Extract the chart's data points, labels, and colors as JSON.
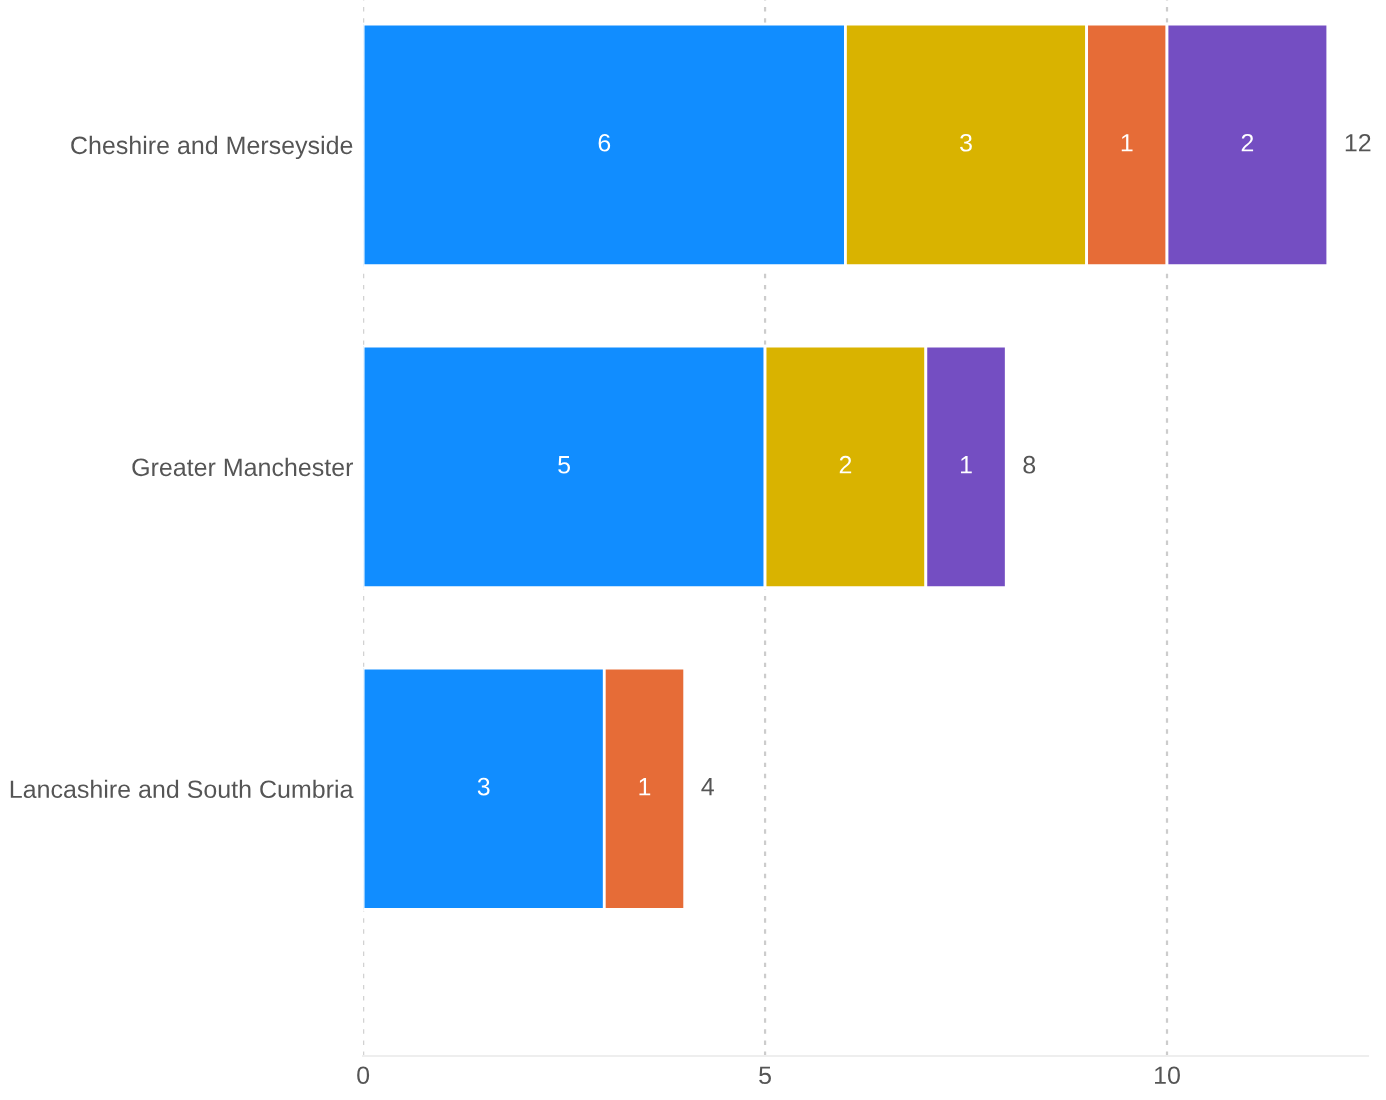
{
  "chart_data": {
    "type": "bar",
    "orientation": "horizontal",
    "stacked": true,
    "categories": [
      "Cheshire and Merseyside",
      "Greater Manchester",
      "Lancashire and South Cumbria"
    ],
    "series": [
      {
        "color": "#118dff",
        "values": [
          6,
          5,
          3
        ]
      },
      {
        "color": "#d9b300",
        "values": [
          3,
          2,
          null
        ]
      },
      {
        "color": "#e66c37",
        "values": [
          1,
          null,
          1
        ]
      },
      {
        "color": "#744ec2",
        "values": [
          2,
          1,
          null
        ]
      }
    ],
    "data_labels": true,
    "totals": [
      "12",
      "8",
      "4"
    ],
    "xlim": [
      0,
      12.5
    ],
    "xticks": [
      0,
      5,
      10
    ],
    "grid": "x",
    "legend": false
  }
}
